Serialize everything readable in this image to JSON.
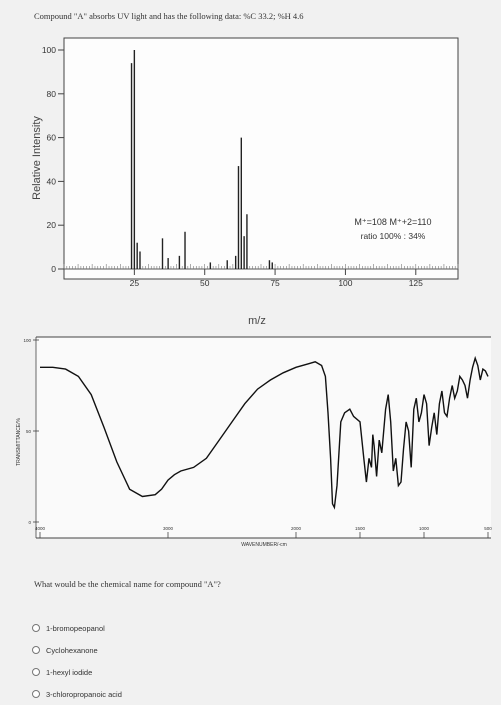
{
  "header": {
    "text": "Compound \"A\" absorbs UV light and has the following data: %C 33.2; %H 4.6"
  },
  "chart_data": [
    {
      "type": "bar",
      "xlabel": "m/z",
      "ylabel": "Relative Intensity",
      "xlim": [
        0,
        140
      ],
      "ylim": [
        0,
        100
      ],
      "xticks": [
        25,
        50,
        75,
        100,
        125
      ],
      "yticks": [
        0,
        20,
        40,
        60,
        80,
        100
      ],
      "annotation": {
        "line1": "M⁺=108  M⁺+2=110",
        "line2": "ratio 100% : 34%"
      },
      "peaks": [
        {
          "x": 24,
          "y": 94
        },
        {
          "x": 25,
          "y": 100
        },
        {
          "x": 26,
          "y": 12
        },
        {
          "x": 27,
          "y": 8
        },
        {
          "x": 35,
          "y": 14
        },
        {
          "x": 37,
          "y": 5
        },
        {
          "x": 41,
          "y": 6
        },
        {
          "x": 43,
          "y": 17
        },
        {
          "x": 52,
          "y": 3
        },
        {
          "x": 58,
          "y": 4
        },
        {
          "x": 61,
          "y": 6
        },
        {
          "x": 62,
          "y": 47
        },
        {
          "x": 63,
          "y": 60
        },
        {
          "x": 64,
          "y": 15
        },
        {
          "x": 65,
          "y": 25
        },
        {
          "x": 73,
          "y": 4
        },
        {
          "x": 74,
          "y": 3
        }
      ]
    },
    {
      "type": "line",
      "xlabel": "WAVENUMBER/-cm",
      "ylabel": "TRANSMITTANCE/%",
      "xlim": [
        4000,
        500
      ],
      "ylim": [
        0,
        100
      ],
      "xticks": [
        4000,
        3000,
        2000,
        1500,
        1000,
        500
      ],
      "yticks": [
        0,
        50,
        100
      ],
      "x": [
        4000,
        3900,
        3800,
        3700,
        3600,
        3500,
        3400,
        3300,
        3200,
        3100,
        3050,
        3000,
        2950,
        2900,
        2800,
        2700,
        2600,
        2500,
        2400,
        2300,
        2200,
        2100,
        2000,
        1900,
        1850,
        1800,
        1770,
        1750,
        1730,
        1715,
        1700,
        1680,
        1650,
        1620,
        1580,
        1550,
        1500,
        1470,
        1450,
        1430,
        1410,
        1400,
        1390,
        1370,
        1350,
        1330,
        1300,
        1280,
        1260,
        1240,
        1220,
        1200,
        1180,
        1160,
        1140,
        1120,
        1100,
        1080,
        1060,
        1040,
        1020,
        1000,
        980,
        960,
        940,
        920,
        900,
        880,
        860,
        840,
        820,
        800,
        780,
        760,
        740,
        720,
        700,
        680,
        660,
        640,
        620,
        600,
        580,
        560,
        540,
        520,
        500
      ],
      "y": [
        85,
        85,
        84,
        80,
        70,
        52,
        33,
        18,
        14,
        15,
        18,
        23,
        26,
        28,
        30,
        35,
        45,
        55,
        65,
        73,
        78,
        82,
        85,
        87,
        88,
        86,
        80,
        60,
        35,
        10,
        8,
        20,
        55,
        60,
        62,
        58,
        55,
        35,
        22,
        35,
        30,
        48,
        42,
        25,
        45,
        38,
        62,
        70,
        55,
        28,
        35,
        20,
        22,
        40,
        55,
        50,
        30,
        62,
        68,
        55,
        60,
        70,
        65,
        42,
        52,
        60,
        48,
        65,
        72,
        60,
        58,
        68,
        75,
        68,
        72,
        80,
        78,
        75,
        68,
        78,
        85,
        90,
        86,
        78,
        84,
        83,
        80
      ]
    }
  ],
  "question": {
    "text": "What would be the chemical name for compound \"A\"?"
  },
  "options": [
    {
      "label": "1-bromopeopanol"
    },
    {
      "label": "Cyclohexanone"
    },
    {
      "label": "1-hexyl iodide"
    },
    {
      "label": "3-chloropropanoic acid"
    }
  ]
}
